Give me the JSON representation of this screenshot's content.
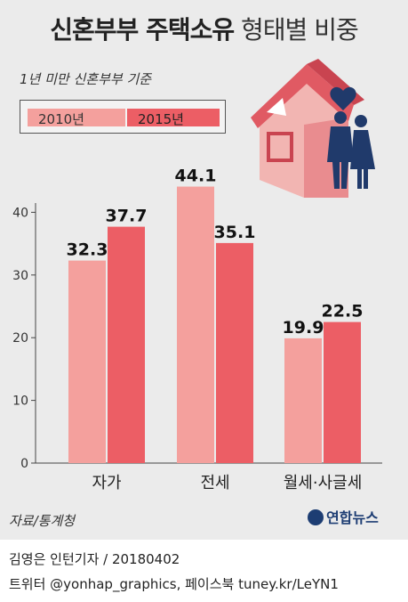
{
  "header": {
    "title_bold": "신혼부부 주택소유",
    "title_light": "형태별 비중",
    "subtitle": "1년 미만 신혼부부 기준"
  },
  "legend": [
    {
      "label": "2010년",
      "color": "#f4a09d"
    },
    {
      "label": "2015년",
      "color": "#ec5e65"
    }
  ],
  "chart_data": {
    "type": "bar",
    "categories": [
      "자가",
      "전세",
      "월세·사글세"
    ],
    "series": [
      {
        "name": "2010년",
        "values": [
          32.3,
          44.1,
          19.9
        ],
        "color": "#f4a09d"
      },
      {
        "name": "2015년",
        "values": [
          37.7,
          35.1,
          22.5
        ],
        "color": "#ec5e65"
      }
    ],
    "yticks": [
      0,
      10,
      20,
      30,
      40
    ],
    "ylim": [
      0,
      50
    ],
    "grid": false,
    "legend_position": "top-left"
  },
  "footer": {
    "source": "자료/통계청",
    "logo": "연합뉴스",
    "credit_line1": "김영은 인턴기자 / 20180402",
    "credit_line2": "트위터 @yonhap_graphics, 페이스북 tuney.kr/LeYN1"
  },
  "illustration": {
    "icon": "house-with-couple-icon"
  }
}
